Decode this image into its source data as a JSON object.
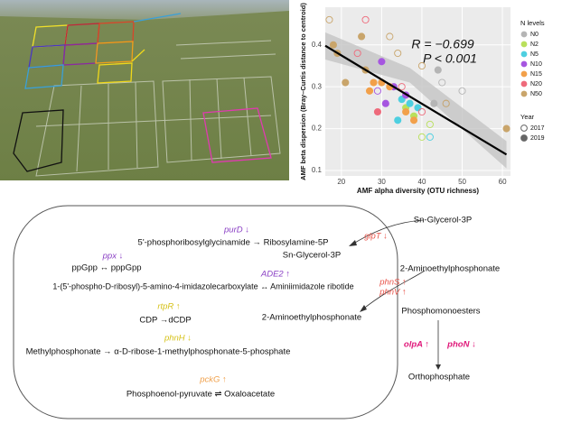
{
  "chart_data": {
    "type": "scatter",
    "xlabel": "AMF alpha diversity (OTU richness)",
    "ylabel": "AMF beta dispersion (Bray–Curtis distance to centroid)",
    "annotations": [
      "R = −0.699",
      "P < 0.001"
    ],
    "xlim": [
      16,
      62
    ],
    "ylim": [
      0.087,
      0.49
    ],
    "xticks": [
      20,
      30,
      40,
      50,
      60
    ],
    "yticks": [
      0.1,
      0.2,
      0.3,
      0.4
    ],
    "grid": true,
    "legend_title": "N levels",
    "year_legend_title": "Year",
    "year_legend": [
      {
        "name": "2017",
        "filled": false
      },
      {
        "name": "2019",
        "filled": true
      }
    ],
    "series": [
      {
        "name": "N0",
        "color": "#b5b5b5",
        "x": [
          44,
          45,
          43,
          50,
          46
        ],
        "values": [
          0.34,
          0.31,
          0.26,
          0.29,
          0.26
        ],
        "year": [
          "2019",
          "2017",
          "2019",
          "2017",
          "2017"
        ]
      },
      {
        "name": "N2",
        "color": "#b9e05c",
        "x": [
          38,
          40,
          36,
          42
        ],
        "values": [
          0.23,
          0.18,
          0.25,
          0.21
        ],
        "year": [
          "2019",
          "2017",
          "2019",
          "2017"
        ]
      },
      {
        "name": "N5",
        "color": "#4ecfe0",
        "x": [
          35,
          37,
          42,
          34,
          39
        ],
        "values": [
          0.27,
          0.26,
          0.18,
          0.22,
          0.25
        ],
        "year": [
          "2019",
          "2019",
          "2017",
          "2019",
          "2019"
        ]
      },
      {
        "name": "N10",
        "color": "#a656e0",
        "x": [
          30,
          33,
          36,
          29,
          31
        ],
        "values": [
          0.36,
          0.3,
          0.28,
          0.29,
          0.26
        ],
        "year": [
          "2019",
          "2019",
          "2019",
          "2017",
          "2019"
        ]
      },
      {
        "name": "N15",
        "color": "#f2a04a",
        "x": [
          28,
          30,
          32,
          36,
          38,
          27
        ],
        "values": [
          0.31,
          0.31,
          0.3,
          0.24,
          0.22,
          0.29
        ],
        "year": [
          "2019",
          "2019",
          "2019",
          "2019",
          "2019",
          "2019"
        ]
      },
      {
        "name": "N20",
        "color": "#ee6a7b",
        "x": [
          26,
          29,
          35,
          40,
          24
        ],
        "values": [
          0.46,
          0.24,
          0.3,
          0.24,
          0.38
        ],
        "year": [
          "2017",
          "2019",
          "2017",
          "2017",
          "2017"
        ]
      },
      {
        "name": "N50",
        "color": "#c9a56b",
        "x": [
          17,
          18,
          19,
          21,
          25,
          26,
          32,
          34,
          40,
          61,
          46
        ],
        "values": [
          0.46,
          0.4,
          0.38,
          0.31,
          0.42,
          0.34,
          0.42,
          0.38,
          0.35,
          0.2,
          0.26
        ],
        "year": [
          "2017",
          "2019",
          "2019",
          "2019",
          "2019",
          "2019",
          "2017",
          "2017",
          "2017",
          "2019",
          "2017"
        ]
      }
    ],
    "fit": {
      "x": [
        16,
        61
      ],
      "values": [
        0.398,
        0.138
      ]
    },
    "ci": {
      "x": [
        16,
        37,
        61
      ],
      "upper": [
        0.43,
        0.345,
        0.17
      ],
      "lower": [
        0.365,
        0.31,
        0.105
      ]
    }
  },
  "diagram": {
    "reactions": [
      {
        "gene": "purD ↓",
        "text": "5'-phosphoribosylglycinamide → Ribosylamine-5P"
      },
      {
        "gene": "ppx ↓",
        "text": "ppGpp  ↔  pppGpp"
      },
      {
        "gene": "ADE2 ↑",
        "text": "1-(5'-phospho-D-ribosyl)-5-amino-4-imidazolecarboxylate  ↔  Aminiimidazole ribotide"
      },
      {
        "gene": "rtpR ↑",
        "text": "CDP →dCDP"
      },
      {
        "gene": "phnH ↓",
        "text": "Methylphosphonate → α-D-ribose-1-methylphosphonate-5-phosphate"
      },
      {
        "gene": "pckG ↑",
        "text": "Phosphoenol-pyruvate  ⇌  Oxaloacetate"
      }
    ],
    "transport": {
      "glycerol_out": "Sn-Glycerol-3P",
      "glycerol_in": "Sn-Glycerol-3P",
      "glpT": "glpT ↓",
      "aep_out": "2-Aminoethylphosphonate",
      "aep_in": "2-Aminoethylphosphonate",
      "phnS": "phnS ↑",
      "phnV": "phnV ↑",
      "phosphomonoesters": "Phosphomonoesters",
      "olpA": "olpA ↑",
      "phoN": "phoN ↓",
      "orthophosphate": "Orthophosphate"
    }
  }
}
